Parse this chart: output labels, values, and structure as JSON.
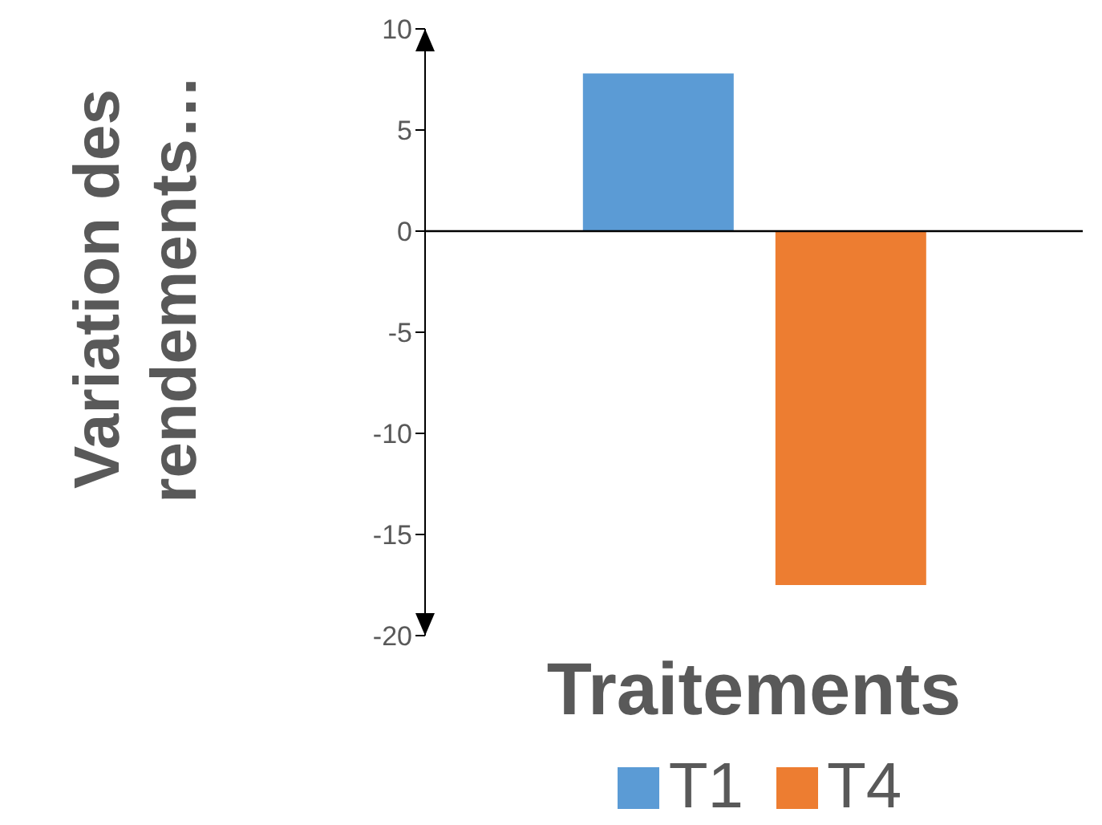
{
  "chart_data": {
    "type": "bar",
    "xlabel": "Traitements",
    "ylabel": "Variation des rendements…",
    "categories": [
      null
    ],
    "series": [
      {
        "name": "T1",
        "color": "#5b9bd5",
        "values": [
          7.8
        ]
      },
      {
        "name": "T4",
        "color": "#ed7d31",
        "values": [
          -17.5
        ]
      }
    ],
    "ylim": [
      -20,
      10
    ],
    "yticks": [
      -20,
      -15,
      -10,
      -5,
      0,
      5,
      10
    ],
    "legend": "bottom"
  }
}
